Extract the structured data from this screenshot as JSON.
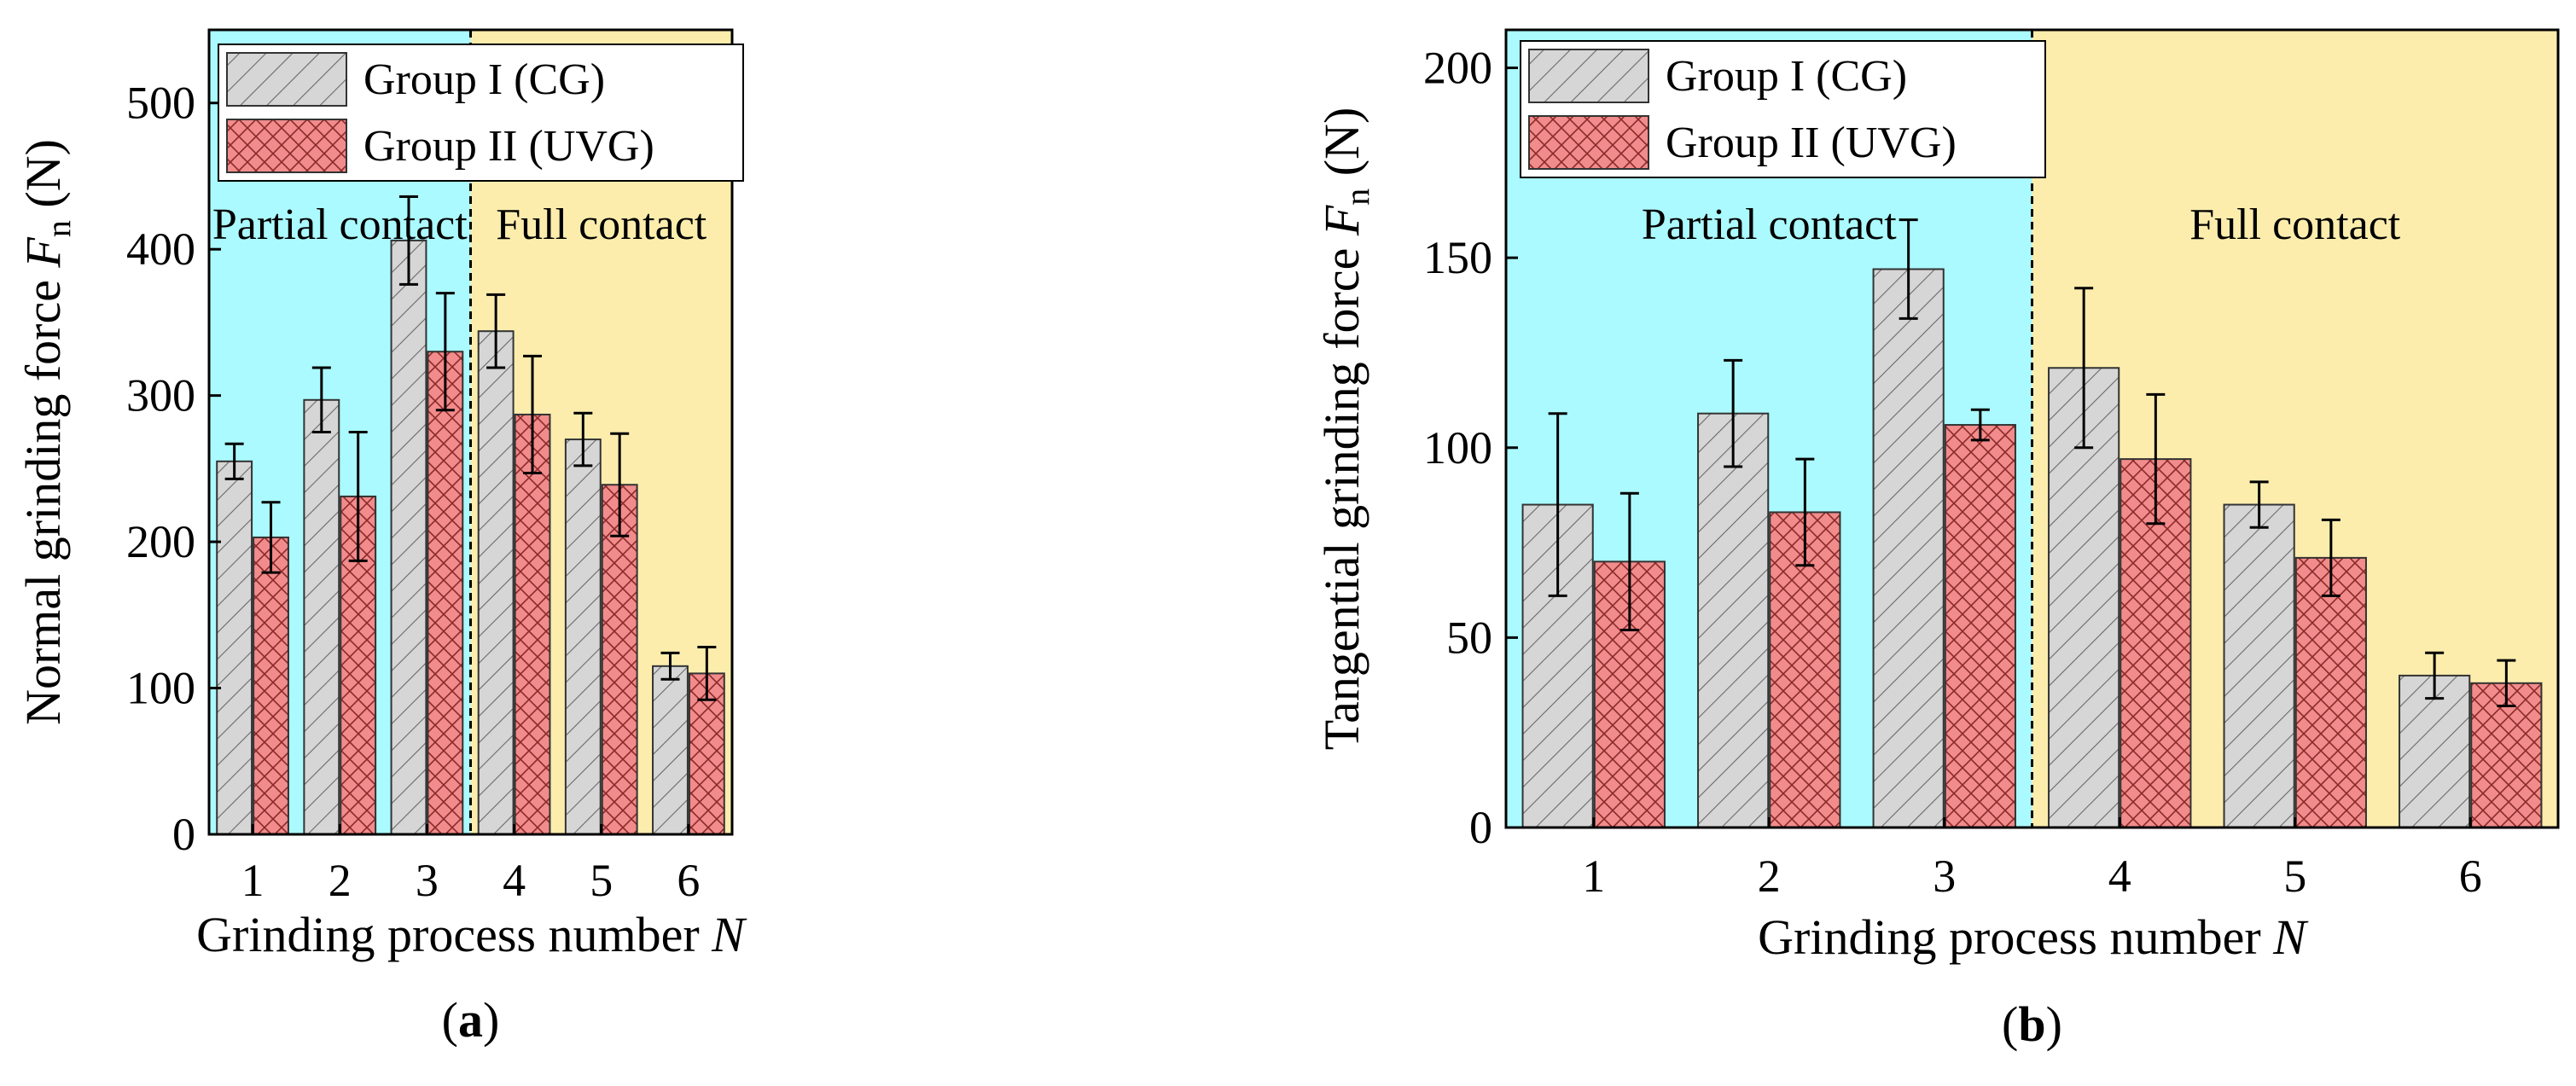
{
  "chart_data": [
    {
      "type": "bar",
      "panel_label": "a",
      "xlabel": "Grinding process number",
      "xlabel_var": "N",
      "ylabel": "Normal grinding force",
      "ylabel_var": "F",
      "ylabel_sub": "n",
      "ylabel_unit": "(N)",
      "categories": [
        "1",
        "2",
        "3",
        "4",
        "5",
        "6"
      ],
      "ylim": [
        0,
        550
      ],
      "yticks": [
        0,
        100,
        200,
        300,
        400,
        500
      ],
      "series": [
        {
          "name": "Group I (CG)",
          "values": [
            255,
            297,
            406,
            344,
            270,
            115
          ],
          "errors": [
            12,
            22,
            30,
            25,
            18,
            9
          ]
        },
        {
          "name": "Group II (UVG)",
          "values": [
            203,
            231,
            330,
            287,
            239,
            110
          ],
          "errors": [
            24,
            44,
            40,
            40,
            35,
            18
          ]
        }
      ],
      "regions": [
        {
          "label": "Partial contact",
          "from": 0.5,
          "to": 3.5,
          "color": "#abfaff"
        },
        {
          "label": "Full contact",
          "from": 3.5,
          "to": 6.5,
          "color": "#fcedad"
        }
      ],
      "legend_position": "top-left"
    },
    {
      "type": "bar",
      "panel_label": "b",
      "xlabel": "Grinding process number",
      "xlabel_var": "N",
      "ylabel": "Tangential grinding force",
      "ylabel_var": "F",
      "ylabel_sub": "n",
      "ylabel_unit": "(N)",
      "categories": [
        "1",
        "2",
        "3",
        "4",
        "5",
        "6"
      ],
      "ylim": [
        0,
        210
      ],
      "yticks": [
        0,
        50,
        100,
        150,
        200
      ],
      "series": [
        {
          "name": "Group I (CG)",
          "values": [
            85,
            109,
            147,
            121,
            85,
            40
          ],
          "errors": [
            24,
            14,
            13,
            21,
            6,
            6
          ]
        },
        {
          "name": "Group II (UVG)",
          "values": [
            70,
            83,
            106,
            97,
            71,
            38
          ],
          "errors": [
            18,
            14,
            4,
            17,
            10,
            6
          ]
        }
      ],
      "regions": [
        {
          "label": "Partial contact",
          "from": 0.5,
          "to": 3.5,
          "color": "#abfaff"
        },
        {
          "label": "Full contact",
          "from": 3.5,
          "to": 6.5,
          "color": "#fcedad"
        }
      ],
      "legend_position": "top-left"
    }
  ],
  "colors": {
    "cg_fill": "#d6d6d6",
    "uvg_fill": "#f28b8b",
    "partial_bg": "#abfaff",
    "full_bg": "#fcedad"
  }
}
